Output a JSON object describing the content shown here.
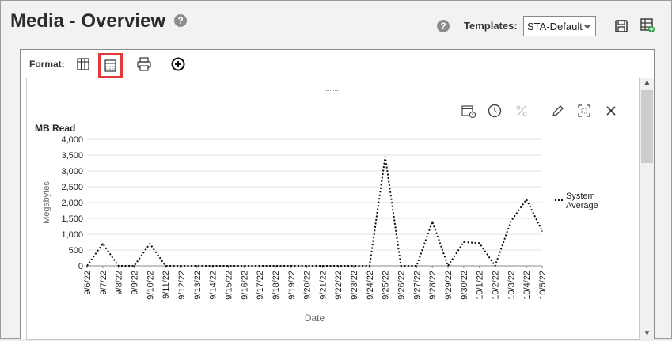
{
  "page": {
    "title": "Media - Overview",
    "help_icon": "question-circle-icon",
    "templates_label": "Templates:",
    "templates_value": "STA-Default",
    "save_icon": "save-icon",
    "add_template_icon": "table-add-icon"
  },
  "toolbar": {
    "format_label": "Format:",
    "items": [
      "grid-view-icon",
      "calculator-view-icon",
      "print-icon",
      "add-circle-icon"
    ],
    "selected": "calculator-view-icon"
  },
  "chart_tools": [
    "calendar-clock-icon",
    "clock-icon",
    "percent-icon",
    "edit-pencil-icon",
    "expand-icon",
    "close-icon"
  ],
  "chart_data": {
    "type": "line",
    "title": "MB Read",
    "xlabel": "Date",
    "ylabel": "Megabytes",
    "ylim": [
      0,
      4000
    ],
    "yticks": [
      "0",
      "500",
      "1,000",
      "1,500",
      "2,000",
      "2,500",
      "3,000",
      "3,500",
      "4,000"
    ],
    "categories": [
      "9/6/22",
      "9/7/22",
      "9/8/22",
      "9/9/22",
      "9/10/22",
      "9/11/22",
      "9/12/22",
      "9/13/22",
      "9/14/22",
      "9/15/22",
      "9/16/22",
      "9/17/22",
      "9/18/22",
      "9/19/22",
      "9/20/22",
      "9/21/22",
      "9/22/22",
      "9/23/22",
      "9/24/22",
      "9/25/22",
      "9/26/22",
      "9/27/22",
      "9/28/22",
      "9/29/22",
      "9/30/22",
      "10/1/22",
      "10/2/22",
      "10/3/22",
      "10/4/22",
      "10/5/22"
    ],
    "series": [
      {
        "name": "System Average",
        "values": [
          0,
          700,
          0,
          0,
          700,
          0,
          0,
          0,
          0,
          0,
          0,
          0,
          0,
          0,
          0,
          0,
          0,
          0,
          0,
          3450,
          0,
          0,
          1400,
          0,
          750,
          720,
          0,
          1400,
          2100,
          1100
        ]
      }
    ],
    "legend_position": "right",
    "grid": true
  }
}
